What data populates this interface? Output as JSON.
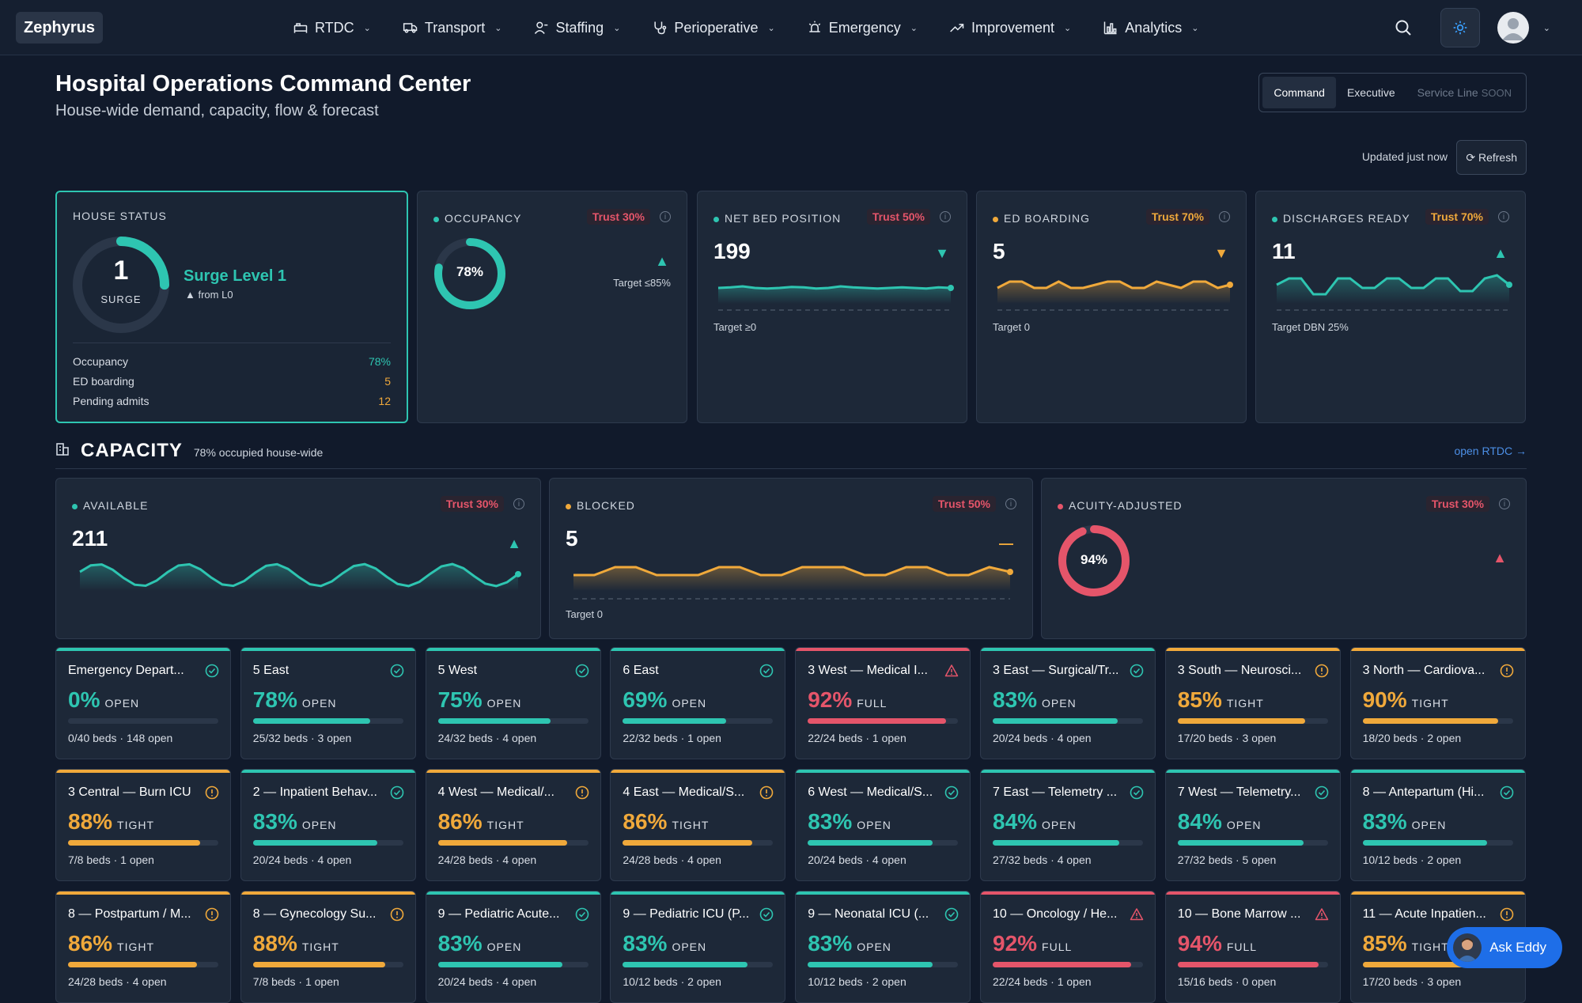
{
  "app": {
    "logo": "Zephyrus"
  },
  "nav": [
    {
      "label": "RTDC",
      "icon": "bed-icon"
    },
    {
      "label": "Transport",
      "icon": "truck-icon"
    },
    {
      "label": "Staffing",
      "icon": "person-icon"
    },
    {
      "label": "Perioperative",
      "icon": "stethoscope-icon"
    },
    {
      "label": "Emergency",
      "icon": "siren-icon"
    },
    {
      "label": "Improvement",
      "icon": "trend-up-icon"
    },
    {
      "label": "Analytics",
      "icon": "bar-chart-icon"
    }
  ],
  "header": {
    "title": "Hospital Operations Command Center",
    "subtitle": "House-wide demand, capacity, flow & forecast"
  },
  "views": {
    "command": "Command",
    "executive": "Executive",
    "service": "Service Line",
    "soon": "SOON"
  },
  "updated": "Updated just now",
  "refresh": "Refresh",
  "house": {
    "label": "HOUSE STATUS",
    "level": "1",
    "level_label": "SURGE",
    "surge": "Surge Level 1",
    "change": "▲ from L0",
    "gauge": 0.25,
    "rows": [
      {
        "k": "Occupancy",
        "v": "78%",
        "color": "#2ec5b1"
      },
      {
        "k": "ED boarding",
        "v": "5",
        "color": "#f0a93b"
      },
      {
        "k": "Pending admits",
        "v": "12",
        "color": "#f0a93b"
      }
    ]
  },
  "kpis": [
    {
      "label": "OCCUPANCY",
      "trust": "Trust 30%",
      "value": "78%",
      "ring": 0.78,
      "target": "Target ≤85%",
      "trend": "▲",
      "dot": "#2ec5b1",
      "trustcolor": "#e5556a",
      "trendcolor": "#2ec5b1"
    },
    {
      "label": "NET BED POSITION",
      "trust": "Trust 50%",
      "value": "199",
      "target": "Target ≥0",
      "trend": "▼",
      "dot": "#2ec5b1",
      "trustcolor": "#e5556a",
      "trendcolor": "#2ec5b1",
      "spark": [
        0.5,
        0.52,
        0.55,
        0.5,
        0.48,
        0.5,
        0.53,
        0.52,
        0.48,
        0.5,
        0.55,
        0.52,
        0.5,
        0.48,
        0.5,
        0.52,
        0.5,
        0.48,
        0.52,
        0.5
      ],
      "sparkcolor": "#2ec5b1"
    },
    {
      "label": "ED BOARDING",
      "trust": "Trust 70%",
      "value": "5",
      "target": "Target 0",
      "trend": "▼",
      "dot": "#f0a93b",
      "trustcolor": "#f0a93b",
      "trendcolor": "#f0a93b",
      "spark": [
        0.5,
        0.7,
        0.7,
        0.5,
        0.5,
        0.7,
        0.5,
        0.5,
        0.6,
        0.7,
        0.7,
        0.5,
        0.5,
        0.7,
        0.6,
        0.5,
        0.7,
        0.7,
        0.5,
        0.6
      ],
      "sparkcolor": "#f0a93b"
    },
    {
      "label": "DISCHARGES READY",
      "trust": "Trust 70%",
      "value": "11",
      "target": "Target DBN 25%",
      "trend": "▲",
      "dot": "#2ec5b1",
      "trustcolor": "#f0a93b",
      "trendcolor": "#2ec5b1",
      "spark": [
        0.6,
        0.8,
        0.8,
        0.3,
        0.3,
        0.8,
        0.8,
        0.5,
        0.5,
        0.8,
        0.8,
        0.5,
        0.5,
        0.8,
        0.8,
        0.4,
        0.4,
        0.8,
        0.9,
        0.6
      ],
      "sparkcolor": "#2ec5b1"
    }
  ],
  "capacity": {
    "title": "CAPACITY",
    "subtitle": "78% occupied house-wide",
    "link": "open RTDC →",
    "cards": [
      {
        "label": "AVAILABLE",
        "trust": "Trust 30%",
        "value": "211",
        "trend": "▲",
        "dot": "#2ec5b1",
        "trustcolor": "#e5556a",
        "trendcolor": "#2ec5b1",
        "spark": "wave",
        "target": ""
      },
      {
        "label": "BLOCKED",
        "trust": "Trust 50%",
        "value": "5",
        "trend": "—",
        "dot": "#f0a93b",
        "trustcolor": "#e5556a",
        "trendcolor": "#f0a93b",
        "spark": "step",
        "target": "Target 0"
      },
      {
        "label": "ACUITY-ADJUSTED",
        "trust": "Trust 30%",
        "value": "94%",
        "ring": 0.94,
        "trend": "▲",
        "dot": "#e5556a",
        "trustcolor": "#e5556a",
        "trendcolor": "#e5556a",
        "target": ""
      }
    ]
  },
  "units": [
    {
      "name": "Emergency Depart...",
      "pct": "0%",
      "value": 0,
      "state": "OPEN",
      "foot": "0/40 beds · 148 open",
      "tone": "ok"
    },
    {
      "name": "5 East",
      "pct": "78%",
      "value": 0.78,
      "state": "OPEN",
      "foot": "25/32 beds · 3 open",
      "tone": "ok"
    },
    {
      "name": "5 West",
      "pct": "75%",
      "value": 0.75,
      "state": "OPEN",
      "foot": "24/32 beds · 4 open",
      "tone": "ok"
    },
    {
      "name": "6 East",
      "pct": "69%",
      "value": 0.69,
      "state": "OPEN",
      "foot": "22/32 beds · 1 open",
      "tone": "ok"
    },
    {
      "name": "3 West — Medical I...",
      "pct": "92%",
      "value": 0.92,
      "state": "FULL",
      "foot": "22/24 beds · 1 open",
      "tone": "full"
    },
    {
      "name": "3 East — Surgical/Tr...",
      "pct": "83%",
      "value": 0.83,
      "state": "OPEN",
      "foot": "20/24 beds · 4 open",
      "tone": "ok"
    },
    {
      "name": "3 South — Neurosci...",
      "pct": "85%",
      "value": 0.85,
      "state": "TIGHT",
      "foot": "17/20 beds · 3 open",
      "tone": "tight"
    },
    {
      "name": "3 North — Cardiova...",
      "pct": "90%",
      "value": 0.9,
      "state": "TIGHT",
      "foot": "18/20 beds · 2 open",
      "tone": "tight"
    },
    {
      "name": "3 Central — Burn ICU",
      "pct": "88%",
      "value": 0.88,
      "state": "TIGHT",
      "foot": "7/8 beds · 1 open",
      "tone": "tight"
    },
    {
      "name": "2 — Inpatient Behav...",
      "pct": "83%",
      "value": 0.83,
      "state": "OPEN",
      "foot": "20/24 beds · 4 open",
      "tone": "ok"
    },
    {
      "name": "4 West — Medical/...",
      "pct": "86%",
      "value": 0.86,
      "state": "TIGHT",
      "foot": "24/28 beds · 4 open",
      "tone": "tight"
    },
    {
      "name": "4 East — Medical/S...",
      "pct": "86%",
      "value": 0.86,
      "state": "TIGHT",
      "foot": "24/28 beds · 4 open",
      "tone": "tight"
    },
    {
      "name": "6 West — Medical/S...",
      "pct": "83%",
      "value": 0.83,
      "state": "OPEN",
      "foot": "20/24 beds · 4 open",
      "tone": "ok"
    },
    {
      "name": "7 East — Telemetry ...",
      "pct": "84%",
      "value": 0.84,
      "state": "OPEN",
      "foot": "27/32 beds · 4 open",
      "tone": "ok"
    },
    {
      "name": "7 West — Telemetry...",
      "pct": "84%",
      "value": 0.84,
      "state": "OPEN",
      "foot": "27/32 beds · 5 open",
      "tone": "ok"
    },
    {
      "name": "8 — Antepartum (Hi...",
      "pct": "83%",
      "value": 0.83,
      "state": "OPEN",
      "foot": "10/12 beds · 2 open",
      "tone": "ok"
    },
    {
      "name": "8 — Postpartum / M...",
      "pct": "86%",
      "value": 0.86,
      "state": "TIGHT",
      "foot": "24/28 beds · 4 open",
      "tone": "tight"
    },
    {
      "name": "8 — Gynecology Su...",
      "pct": "88%",
      "value": 0.88,
      "state": "TIGHT",
      "foot": "7/8 beds · 1 open",
      "tone": "tight"
    },
    {
      "name": "9 — Pediatric Acute...",
      "pct": "83%",
      "value": 0.83,
      "state": "OPEN",
      "foot": "20/24 beds · 4 open",
      "tone": "ok"
    },
    {
      "name": "9 — Pediatric ICU (P...",
      "pct": "83%",
      "value": 0.83,
      "state": "OPEN",
      "foot": "10/12 beds · 2 open",
      "tone": "ok"
    },
    {
      "name": "9 — Neonatal ICU (...",
      "pct": "83%",
      "value": 0.83,
      "state": "OPEN",
      "foot": "10/12 beds · 2 open",
      "tone": "ok"
    },
    {
      "name": "10 — Oncology / He...",
      "pct": "92%",
      "value": 0.92,
      "state": "FULL",
      "foot": "22/24 beds · 1 open",
      "tone": "full"
    },
    {
      "name": "10 — Bone Marrow ...",
      "pct": "94%",
      "value": 0.94,
      "state": "FULL",
      "foot": "15/16 beds · 0 open",
      "tone": "full"
    },
    {
      "name": "11 — Acute Inpatien...",
      "pct": "85%",
      "value": 0.85,
      "state": "TIGHT",
      "foot": "17/20 beds · 3 open",
      "tone": "tight"
    }
  ],
  "tones": {
    "ok": "#2ec5b1",
    "tight": "#f0a93b",
    "full": "#e5556a"
  },
  "assistant": {
    "label": "Ask Eddy"
  }
}
